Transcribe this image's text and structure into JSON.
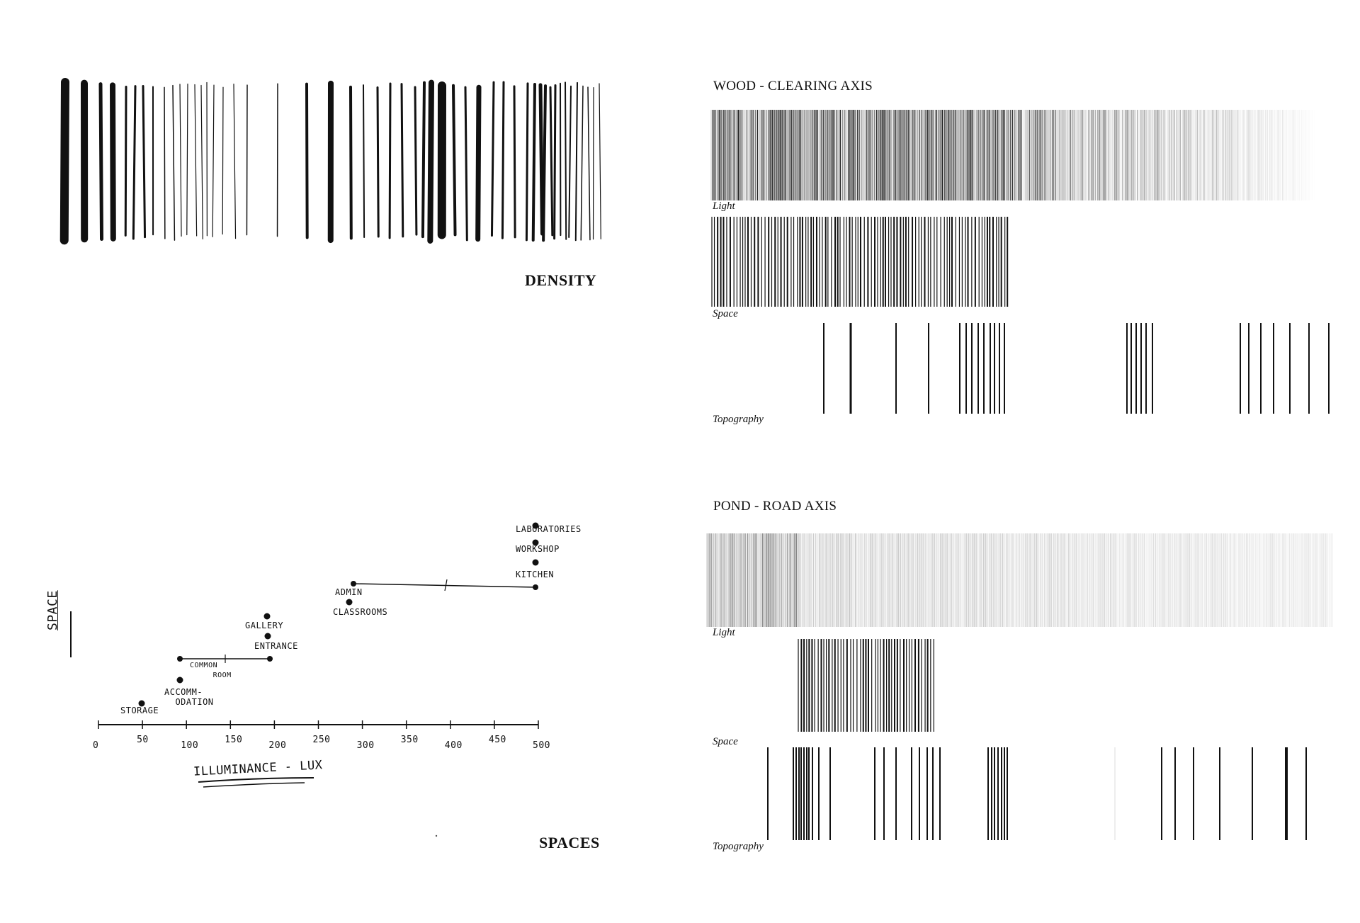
{
  "density_panel": {
    "label": "DENSITY"
  },
  "spaces_panel": {
    "label": "SPACES",
    "y_axis_label": "SPACE",
    "x_axis_label": "ILLUMINANCE - LUX",
    "ticks": [
      "0",
      "50",
      "100",
      "150",
      "200",
      "250",
      "300",
      "350",
      "400",
      "450",
      "500"
    ],
    "chart_data": {
      "type": "scatter",
      "xlabel": "ILLUMINANCE - LUX",
      "ylabel": "SPACE",
      "xlim": [
        0,
        500
      ],
      "points": [
        {
          "label": "STORAGE",
          "x": 50
        },
        {
          "label": "ACCOMM-\nODATION",
          "x": 95
        },
        {
          "label": "COMMON ROOM",
          "x": [
            90,
            195
          ]
        },
        {
          "label": "ENTRANCE",
          "x": 195
        },
        {
          "label": "GALLERY",
          "x": 190
        },
        {
          "label": "CLASSROOMS",
          "x": 285
        },
        {
          "label": "ADMIN",
          "x": [
            290,
            500
          ]
        },
        {
          "label": "KITCHEN",
          "x": 500
        },
        {
          "label": "WORKSHOP",
          "x": 500
        },
        {
          "label": "LABORATORIES",
          "x": 500
        }
      ]
    }
  },
  "wood_axis": {
    "title": "WOOD - CLEARING AXIS",
    "rows": [
      {
        "label": "Light"
      },
      {
        "label": "Space"
      },
      {
        "label": "Topography"
      }
    ]
  },
  "pond_axis": {
    "title": "POND - ROAD AXIS",
    "rows": [
      {
        "label": "Light"
      },
      {
        "label": "Space"
      },
      {
        "label": "Topography"
      }
    ]
  }
}
